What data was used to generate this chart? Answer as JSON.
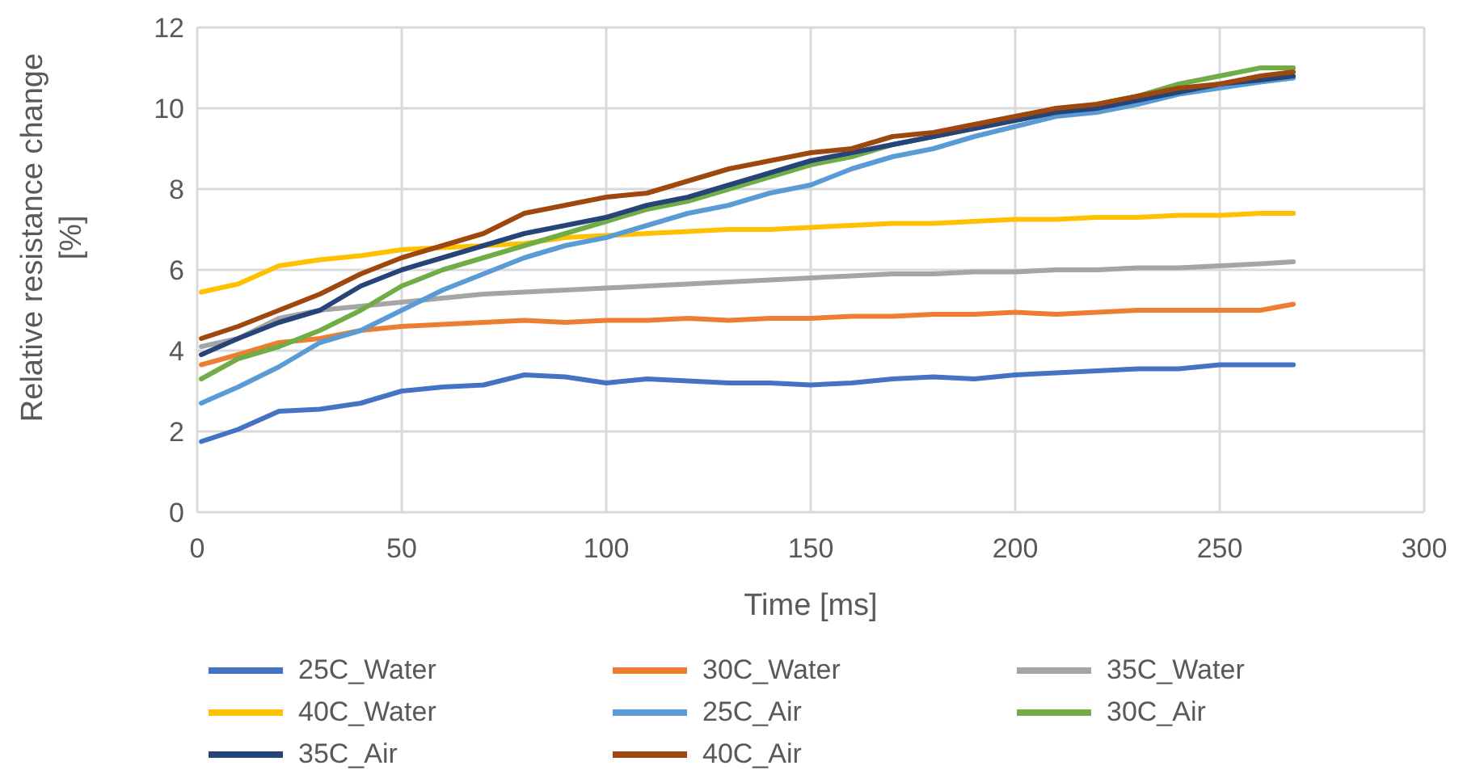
{
  "chart_data": {
    "type": "line",
    "xlabel": "Time [ms]",
    "ylabel": "Relative resistance change [%]",
    "x": [
      1,
      10,
      20,
      30,
      40,
      50,
      60,
      70,
      80,
      90,
      100,
      110,
      120,
      130,
      140,
      150,
      160,
      170,
      180,
      190,
      200,
      210,
      220,
      230,
      240,
      250,
      260,
      268
    ],
    "series": [
      {
        "name": "25C_Water",
        "color": "#4472c4",
        "values": [
          1.75,
          2.05,
          2.5,
          2.55,
          2.7,
          3.0,
          3.1,
          3.15,
          3.4,
          3.35,
          3.2,
          3.3,
          3.25,
          3.2,
          3.2,
          3.15,
          3.2,
          3.3,
          3.35,
          3.3,
          3.4,
          3.45,
          3.5,
          3.55,
          3.55,
          3.65,
          3.65,
          3.65
        ]
      },
      {
        "name": "30C_Water",
        "color": "#ed7d31",
        "values": [
          3.65,
          3.9,
          4.2,
          4.3,
          4.5,
          4.6,
          4.65,
          4.7,
          4.75,
          4.7,
          4.75,
          4.75,
          4.8,
          4.75,
          4.8,
          4.8,
          4.85,
          4.85,
          4.9,
          4.9,
          4.95,
          4.9,
          4.95,
          5.0,
          5.0,
          5.0,
          5.0,
          5.15
        ]
      },
      {
        "name": "35C_Water",
        "color": "#a5a5a5",
        "values": [
          4.1,
          4.3,
          4.8,
          5.0,
          5.1,
          5.2,
          5.3,
          5.4,
          5.45,
          5.5,
          5.55,
          5.6,
          5.65,
          5.7,
          5.75,
          5.8,
          5.85,
          5.9,
          5.9,
          5.95,
          5.95,
          6.0,
          6.0,
          6.05,
          6.05,
          6.1,
          6.15,
          6.2
        ]
      },
      {
        "name": "40C_Water",
        "color": "#ffc000",
        "values": [
          5.45,
          5.65,
          6.1,
          6.25,
          6.35,
          6.5,
          6.55,
          6.6,
          6.65,
          6.8,
          6.85,
          6.9,
          6.95,
          7.0,
          7.0,
          7.05,
          7.1,
          7.15,
          7.15,
          7.2,
          7.25,
          7.25,
          7.3,
          7.3,
          7.35,
          7.35,
          7.4,
          7.4
        ]
      },
      {
        "name": "25C_Air",
        "color": "#5b9bd5",
        "values": [
          2.7,
          3.1,
          3.6,
          4.2,
          4.5,
          5.0,
          5.5,
          5.9,
          6.3,
          6.6,
          6.8,
          7.1,
          7.4,
          7.6,
          7.9,
          8.1,
          8.5,
          8.8,
          9.0,
          9.3,
          9.55,
          9.8,
          9.9,
          10.1,
          10.35,
          10.5,
          10.65,
          10.75
        ]
      },
      {
        "name": "30C_Air",
        "color": "#70ad47",
        "values": [
          3.3,
          3.8,
          4.1,
          4.5,
          5.0,
          5.6,
          6.0,
          6.3,
          6.6,
          6.9,
          7.2,
          7.5,
          7.7,
          8.0,
          8.3,
          8.6,
          8.8,
          9.1,
          9.3,
          9.5,
          9.7,
          9.9,
          10.1,
          10.3,
          10.6,
          10.8,
          11.0,
          11.0
        ]
      },
      {
        "name": "35C_Air",
        "color": "#264478",
        "values": [
          3.9,
          4.3,
          4.7,
          5.0,
          5.6,
          6.0,
          6.3,
          6.6,
          6.9,
          7.1,
          7.3,
          7.6,
          7.8,
          8.1,
          8.4,
          8.7,
          8.9,
          9.1,
          9.3,
          9.5,
          9.7,
          9.9,
          10.0,
          10.2,
          10.4,
          10.6,
          10.7,
          10.8
        ]
      },
      {
        "name": "40C_Air",
        "color": "#9e480e",
        "values": [
          4.3,
          4.6,
          5.0,
          5.4,
          5.9,
          6.3,
          6.6,
          6.9,
          7.4,
          7.6,
          7.8,
          7.9,
          8.2,
          8.5,
          8.7,
          8.9,
          9.0,
          9.3,
          9.4,
          9.6,
          9.8,
          10.0,
          10.1,
          10.3,
          10.5,
          10.6,
          10.8,
          10.9
        ]
      }
    ],
    "xlim": [
      0,
      300
    ],
    "xticks": [
      0,
      50,
      100,
      150,
      200,
      250,
      300
    ],
    "ylim": [
      0,
      12
    ],
    "yticks": [
      0,
      2,
      4,
      6,
      8,
      10,
      12
    ],
    "grid": true,
    "legend": "bottom",
    "marker": "none",
    "line_style": "solid"
  }
}
